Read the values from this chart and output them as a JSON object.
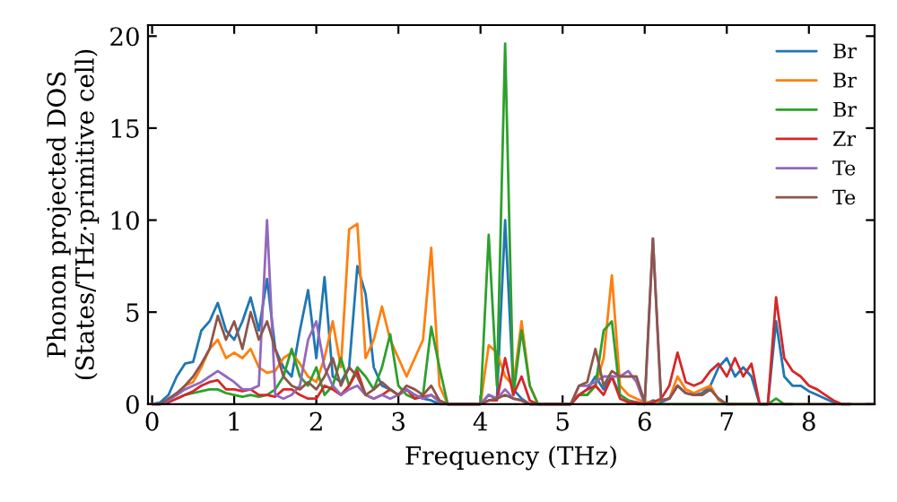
{
  "chart_data": {
    "type": "line",
    "xlabel": "Frequency (THz)",
    "ylabel": "Phonon projected DOS\n(States/THz·primitive cell)",
    "x": [
      0,
      0.1,
      0.2,
      0.3,
      0.4,
      0.5,
      0.6,
      0.7,
      0.8,
      0.9,
      1,
      1.1,
      1.2,
      1.3,
      1.4,
      1.5,
      1.6,
      1.7,
      1.8,
      1.9,
      2,
      2.1,
      2.2,
      2.3,
      2.4,
      2.5,
      2.6,
      2.7,
      2.8,
      2.9,
      3,
      3.1,
      3.2,
      3.3,
      3.4,
      3.5,
      3.6,
      3.7,
      3.8,
      3.9,
      4,
      4.1,
      4.2,
      4.3,
      4.4,
      4.5,
      4.6,
      4.7,
      4.8,
      4.9,
      5,
      5.1,
      5.2,
      5.3,
      5.4,
      5.5,
      5.6,
      5.7,
      5.8,
      5.9,
      6,
      6.1,
      6.2,
      6.3,
      6.4,
      6.5,
      6.6,
      6.7,
      6.8,
      6.9,
      7,
      7.1,
      7.2,
      7.3,
      7.4,
      7.5,
      7.6,
      7.7,
      7.8,
      7.9,
      8,
      8.1,
      8.2,
      8.3,
      8.4,
      8.5,
      8.6,
      8.7,
      8.8
    ],
    "series": [
      {
        "name": "Br",
        "color": "#1f77b4",
        "values": [
          0,
          0.1,
          0.5,
          1.5,
          2.2,
          2.3,
          4,
          4.5,
          5.5,
          4,
          3.5,
          4.5,
          5.8,
          4,
          6.8,
          3,
          2,
          1.5,
          4,
          6.2,
          2.5,
          6.9,
          1.5,
          1.2,
          2,
          7.5,
          6,
          2,
          1,
          0.8,
          0.5,
          0.8,
          0.5,
          0.3,
          0.2,
          0,
          0,
          0,
          0,
          0,
          0,
          0.5,
          0.3,
          10,
          0.8,
          0.3,
          0,
          0,
          0,
          0,
          0,
          0,
          0.5,
          0.8,
          1.5,
          0.8,
          1.5,
          0.5,
          0.2,
          0.1,
          0,
          0.2,
          0.1,
          0.3,
          1,
          0.6,
          0.5,
          0.6,
          1,
          2,
          2.5,
          1.5,
          2,
          1.5,
          0,
          0,
          4.5,
          1.5,
          1,
          1,
          0.7,
          0.5,
          0.3,
          0.1,
          0,
          0,
          null,
          null,
          null
        ]
      },
      {
        "name": "Br",
        "color": "#ff7f0e",
        "values": [
          null,
          null,
          null,
          0.5,
          1,
          1.2,
          2,
          3,
          3.5,
          2.5,
          2.8,
          2.5,
          3,
          2,
          1.7,
          1.8,
          2.5,
          2.8,
          2.2,
          1.5,
          1.2,
          2.5,
          4.5,
          2,
          9.5,
          9.8,
          2.5,
          3.5,
          5.3,
          3.5,
          2.5,
          1.5,
          2.5,
          3.5,
          8.5,
          1,
          0,
          0,
          0,
          0,
          0,
          3.2,
          2.8,
          1.5,
          1,
          4.5,
          1,
          0,
          0,
          0,
          0,
          0,
          0.5,
          0.5,
          1,
          2.5,
          7,
          1,
          0.5,
          0.3,
          0.1,
          0.1,
          0.2,
          0.3,
          1.5,
          0.8,
          0.6,
          0.8,
          1,
          0.2,
          0,
          0,
          null,
          null,
          null,
          null,
          null,
          null,
          null,
          null,
          null,
          null,
          null,
          null,
          null,
          null,
          null,
          null,
          null
        ]
      },
      {
        "name": "Br",
        "color": "#2ca02c",
        "values": [
          null,
          null,
          null,
          0.3,
          0.5,
          0.6,
          0.7,
          0.8,
          0.8,
          0.6,
          0.5,
          0.4,
          0.5,
          0.4,
          0.5,
          0.8,
          1.5,
          3,
          1.5,
          1,
          2,
          0.5,
          1,
          2.5,
          1,
          2,
          1.5,
          0.8,
          2,
          3.8,
          1,
          0.5,
          0.3,
          0.5,
          4.2,
          2,
          0,
          0,
          0,
          0,
          0,
          9.2,
          1,
          19.6,
          0.5,
          4,
          1,
          0,
          0,
          0,
          0,
          0,
          0.5,
          0.5,
          1,
          4,
          4.5,
          0.5,
          0.2,
          0,
          0,
          0,
          0,
          0,
          0,
          0,
          0,
          0,
          0,
          0,
          0,
          0,
          0,
          0,
          0,
          0,
          0.3,
          0,
          0,
          null,
          null,
          null,
          null,
          null,
          null,
          null,
          null,
          null,
          null
        ]
      },
      {
        "name": "Zr",
        "color": "#d62728",
        "values": [
          0,
          0,
          0.1,
          0.3,
          0.5,
          0.7,
          1,
          1.2,
          1.3,
          0.8,
          0.8,
          0.7,
          0.8,
          0.5,
          0.5,
          0.4,
          0.8,
          0.8,
          0.5,
          0.3,
          0.3,
          1,
          0.8,
          0.5,
          1,
          1.8,
          0.5,
          0.3,
          0.5,
          0.8,
          0.5,
          0.8,
          0.3,
          0.4,
          0.5,
          0.2,
          0,
          0,
          0,
          0,
          0,
          0.2,
          0.2,
          2.5,
          0.5,
          1.5,
          0.2,
          0,
          0,
          0,
          0,
          0,
          0.5,
          0.8,
          1,
          0.5,
          1.5,
          0.3,
          0.1,
          0.1,
          0,
          0.1,
          0.3,
          1,
          2.8,
          1.2,
          1,
          1.2,
          1.8,
          2.2,
          1.5,
          2.5,
          1.5,
          2.2,
          0,
          0,
          5.8,
          2.5,
          1.8,
          1.5,
          1,
          0.8,
          0.5,
          0.2,
          0,
          0,
          null,
          null,
          null
        ]
      },
      {
        "name": "Te",
        "color": "#9467bd",
        "values": [
          0,
          0,
          0.2,
          0.5,
          0.8,
          1,
          1.2,
          1.5,
          1.8,
          1.5,
          1.2,
          0.8,
          0.8,
          1,
          10,
          0.5,
          0.3,
          0.5,
          1,
          3.5,
          4.5,
          2,
          1,
          0.5,
          0.8,
          1,
          0.5,
          0.3,
          0.5,
          0.3,
          0.5,
          0.8,
          0.5,
          0.3,
          0.5,
          0.1,
          0,
          0,
          0,
          0,
          0,
          0.5,
          0.3,
          0.8,
          0.3,
          0.2,
          0,
          0,
          0,
          0,
          0,
          0,
          1,
          1,
          1.2,
          1.5,
          1.5,
          1.5,
          1.8,
          1.2,
          0,
          9,
          0.2,
          0.3,
          1,
          0.6,
          0.5,
          0.5,
          0.8,
          0.3,
          0,
          null,
          null,
          null,
          null,
          null,
          null,
          null,
          null,
          null,
          null,
          null,
          null,
          null,
          null,
          null,
          null,
          null,
          null
        ]
      },
      {
        "name": "Te",
        "color": "#8c564b",
        "values": [
          0,
          0,
          0.3,
          0.6,
          1,
          1.5,
          2.2,
          3,
          4.8,
          3.5,
          4.5,
          3,
          5,
          3.5,
          4.5,
          3,
          1.5,
          1,
          0.8,
          1.2,
          0.8,
          1.5,
          2.5,
          1,
          2,
          1.5,
          0.5,
          0.8,
          1.2,
          0.8,
          0.5,
          1,
          0.8,
          0.5,
          1,
          0.2,
          0,
          0,
          0,
          0,
          0,
          0.2,
          0.3,
          0.5,
          0.3,
          0.2,
          0,
          0,
          0,
          0,
          0,
          0,
          1,
          1.2,
          3,
          1,
          1.8,
          1.5,
          1.5,
          1.5,
          0.1,
          9,
          0.2,
          0.3,
          1,
          0.6,
          0.5,
          0.5,
          0.8,
          0.3,
          0,
          0,
          0,
          0,
          0,
          0,
          0,
          0,
          0,
          0,
          0,
          0,
          0,
          0,
          0,
          0,
          0,
          0,
          0
        ]
      }
    ],
    "xlim": [
      -0.05,
      8.8
    ],
    "ylim": [
      0,
      20.6
    ],
    "xticks": [
      0,
      1,
      2,
      3,
      4,
      5,
      6,
      7,
      8
    ],
    "yticks": [
      0,
      5,
      10,
      15,
      20
    ],
    "legend": "top right",
    "grid": false,
    "marker": "none",
    "line_style": "solid"
  }
}
